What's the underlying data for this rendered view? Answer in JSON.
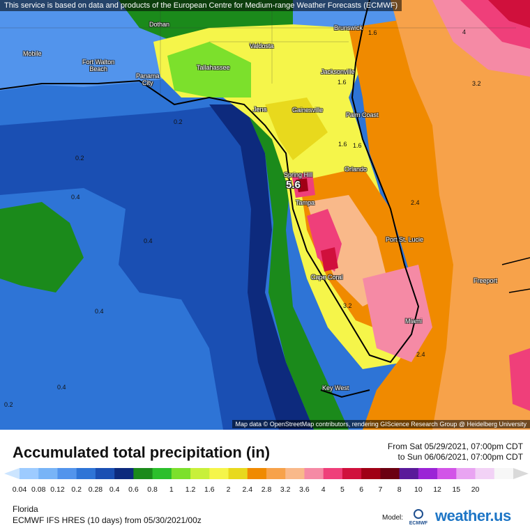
{
  "attribution_top": "This service is based on data and products of the European Centre for Medium-range Weather Forecasts (ECMWF)",
  "attribution_bottom": "Map data © OpenStreetMap contributors, rendering GIScience Research Group @ Heidelberg University",
  "cities": [
    {
      "name": "Dothan"
    },
    {
      "name": "Mobile"
    },
    {
      "name": "Fort Walton\nBeach"
    },
    {
      "name": "Panama\nCity"
    },
    {
      "name": "Tallahassee"
    },
    {
      "name": "Valdosta"
    },
    {
      "name": "Brunswick"
    },
    {
      "name": "Jacksonville"
    },
    {
      "name": "Gainesville"
    },
    {
      "name": "Palm Coast"
    },
    {
      "name": "Jena"
    },
    {
      "name": "Spring Hill"
    },
    {
      "name": "Orlando"
    },
    {
      "name": "Tampa"
    },
    {
      "name": "Port St. Lucie"
    },
    {
      "name": "Cape Coral"
    },
    {
      "name": "Freeport"
    },
    {
      "name": "Miami"
    },
    {
      "name": "Key West"
    }
  ],
  "map_values": [
    {
      "text": "0.2",
      "big": false
    },
    {
      "text": "0.4",
      "big": false
    },
    {
      "text": "0.4",
      "big": false
    },
    {
      "text": "0.4",
      "big": false
    },
    {
      "text": "0.4",
      "big": false
    },
    {
      "text": "0.2",
      "big": false
    },
    {
      "text": "0.2",
      "big": false
    },
    {
      "text": "1.6",
      "big": false
    },
    {
      "text": "1.6",
      "big": false
    },
    {
      "text": "1.6",
      "big": false
    },
    {
      "text": "1.6",
      "big": false
    },
    {
      "text": "5.6",
      "big": true
    },
    {
      "text": "2.4",
      "big": false
    },
    {
      "text": "3.2",
      "big": false
    },
    {
      "text": "2.4",
      "big": false
    },
    {
      "text": "3.2",
      "big": false
    },
    {
      "text": "4",
      "big": false
    }
  ],
  "legend": {
    "title": "Accumulated total precipitation (in)",
    "period_from": "From Sat 05/29/2021, 07:00pm CDT",
    "period_to": "to Sun 06/06/2021, 07:00pm CDT",
    "colors": [
      "#cce5ff",
      "#9dcbff",
      "#78b4f7",
      "#5294ec",
      "#2e74d6",
      "#1a4fb3",
      "#0d2a7d",
      "#1b8a1b",
      "#2bbf2b",
      "#7ce02c",
      "#c8f03a",
      "#f5f54a",
      "#e8d91d",
      "#f08a00",
      "#f7a24a",
      "#f9b98a",
      "#f58aa5",
      "#ef3f7a",
      "#d0103c",
      "#a00015",
      "#6b0011",
      "#5a1a9a",
      "#9b24d6",
      "#d254e8",
      "#e9a4f2",
      "#f2d2f6",
      "#f7f7f7",
      "#d9d9d9"
    ],
    "ticks": [
      "0.04",
      "0.08",
      "0.12",
      "0.2",
      "0.28",
      "0.4",
      "0.6",
      "0.8",
      "1",
      "1.2",
      "1.6",
      "2",
      "2.4",
      "2.8",
      "3.2",
      "3.6",
      "4",
      "5",
      "6",
      "7",
      "8",
      "10",
      "12",
      "15",
      "20"
    ]
  },
  "region": "Florida",
  "model_line": "ECMWF IFS HRES (10 days) from 05/30/2021/00z",
  "model_label": "Model:",
  "ecmwf_label": "ECMWF",
  "brand": "weather.us"
}
